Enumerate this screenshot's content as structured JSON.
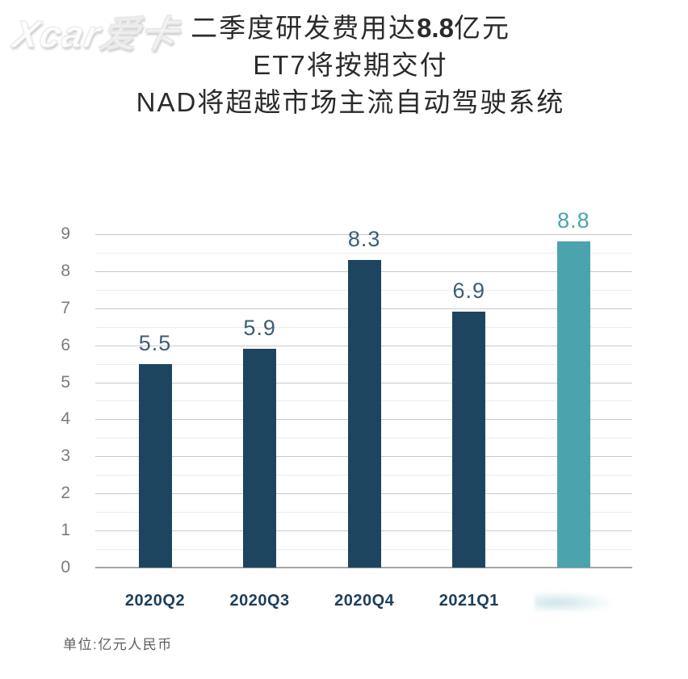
{
  "watermark": {
    "text": "Xcar爱卡"
  },
  "title": {
    "line1_prefix": "二季度研发费用达",
    "line1_highlight": "8.8",
    "line1_suffix": "亿元",
    "line2": "ET7将按期交付",
    "line3": "NAD将超越市场主流自动驾驶系统"
  },
  "chart_data": {
    "type": "bar",
    "categories": [
      "2020Q2",
      "2020Q3",
      "2020Q4",
      "2021Q1",
      ""
    ],
    "values": [
      5.5,
      5.9,
      8.3,
      6.9,
      8.8
    ],
    "value_labels": [
      "5.5",
      "5.9",
      "8.3",
      "6.9",
      "8.8"
    ],
    "highlight_index": 4,
    "erased_xtick_index": 4,
    "ytick_labels": [
      "0",
      "1",
      "2",
      "3",
      "4",
      "5",
      "6",
      "7",
      "8",
      "9"
    ],
    "ylim": [
      0,
      9
    ],
    "major_grid_step": 1,
    "minor_grid_step": 0.5,
    "grid": true,
    "legend": false,
    "title": "",
    "xlabel": "",
    "ylabel": "",
    "colors": {
      "bar_default": "#1e455f",
      "bar_highlight": "#4ba3ad",
      "value_label_default": "#3d5e75",
      "value_label_highlight": "#4ba3ad",
      "xtick_label": "#1d3f5c",
      "ytick_label": "#7b7b7b",
      "major_grid": "#c9c9c9",
      "minor_grid": "#ececec",
      "baseline": "#a5a5a5"
    }
  },
  "footnote": {
    "text": "单位:亿元人民币"
  }
}
